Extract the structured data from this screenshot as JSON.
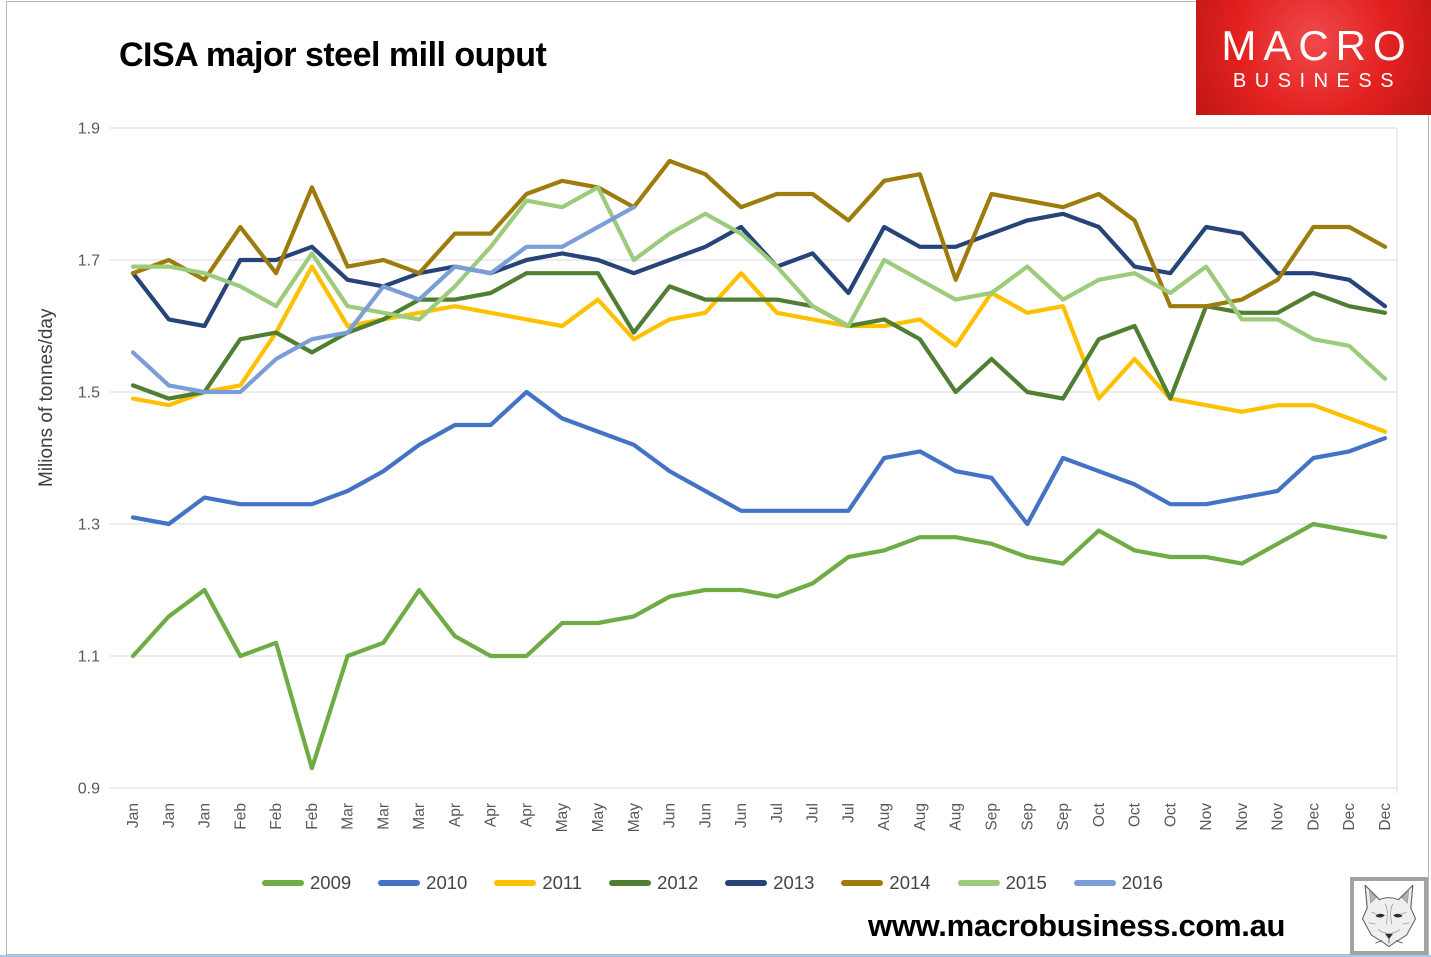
{
  "page": {
    "title": "CISA major steel mill ouput",
    "website": "www.macrobusiness.com.au"
  },
  "logo": {
    "line1": "MACRO",
    "line2": "BUSINESS",
    "bg_color": "#e2211f",
    "text_color": "#ffffff"
  },
  "chart_data": {
    "type": "line",
    "title": "CISA major steel mill ouput",
    "xlabel": "",
    "ylabel": "Milions of tonnes/day",
    "ylim": [
      0.9,
      1.9
    ],
    "yticks": [
      1.9,
      1.7,
      1.5,
      1.3,
      1.1,
      0.9
    ],
    "grid": "horizontal",
    "grid_color": "#d9d9d9",
    "tick_color": "#595959",
    "legend_position": "bottom",
    "x_labels": [
      "Jan",
      "Jan",
      "Jan",
      "Feb",
      "Feb",
      "Feb",
      "Mar",
      "Mar",
      "Mar",
      "Apr",
      "Apr",
      "Apr",
      "May",
      "May",
      "May",
      "Jun",
      "Jun",
      "Jun",
      "Jul",
      "Jul",
      "Jul",
      "Aug",
      "Aug",
      "Aug",
      "Sep",
      "Sep",
      "Sep",
      "Oct",
      "Oct",
      "Oct",
      "Nov",
      "Nov",
      "Nov",
      "Dec",
      "Dec",
      "Dec"
    ],
    "series": [
      {
        "name": "2009",
        "color": "#6FAC46",
        "values": [
          1.1,
          1.16,
          1.2,
          1.1,
          1.12,
          0.93,
          1.1,
          1.12,
          1.2,
          1.13,
          1.1,
          1.1,
          1.15,
          1.15,
          1.16,
          1.19,
          1.2,
          1.2,
          1.19,
          1.21,
          1.25,
          1.26,
          1.28,
          1.28,
          1.27,
          1.25,
          1.24,
          1.29,
          1.26,
          1.25,
          1.25,
          1.24,
          1.27,
          1.3,
          1.29,
          1.28
        ]
      },
      {
        "name": "2010",
        "color": "#4472C4",
        "values": [
          1.31,
          1.3,
          1.34,
          1.33,
          1.33,
          1.33,
          1.35,
          1.38,
          1.42,
          1.45,
          1.45,
          1.5,
          1.46,
          1.44,
          1.42,
          1.38,
          1.35,
          1.32,
          1.32,
          1.32,
          1.32,
          1.4,
          1.41,
          1.38,
          1.37,
          1.3,
          1.4,
          1.38,
          1.36,
          1.33,
          1.33,
          1.34,
          1.35,
          1.4,
          1.41,
          1.43
        ]
      },
      {
        "name": "2011",
        "color": "#FFC000",
        "values": [
          1.49,
          1.48,
          1.5,
          1.51,
          1.59,
          1.69,
          1.6,
          1.61,
          1.62,
          1.63,
          1.62,
          1.61,
          1.6,
          1.64,
          1.58,
          1.61,
          1.62,
          1.68,
          1.62,
          1.61,
          1.6,
          1.6,
          1.61,
          1.57,
          1.65,
          1.62,
          1.63,
          1.49,
          1.55,
          1.49,
          1.48,
          1.47,
          1.48,
          1.48,
          1.46,
          1.44
        ]
      },
      {
        "name": "2012",
        "color": "#507E32",
        "values": [
          1.51,
          1.49,
          1.5,
          1.58,
          1.59,
          1.56,
          1.59,
          1.61,
          1.64,
          1.64,
          1.65,
          1.68,
          1.68,
          1.68,
          1.59,
          1.66,
          1.64,
          1.64,
          1.64,
          1.63,
          1.6,
          1.61,
          1.58,
          1.5,
          1.55,
          1.5,
          1.49,
          1.58,
          1.6,
          1.49,
          1.63,
          1.62,
          1.62,
          1.65,
          1.63,
          1.62
        ]
      },
      {
        "name": "2013",
        "color": "#264478",
        "values": [
          1.68,
          1.61,
          1.6,
          1.7,
          1.7,
          1.72,
          1.67,
          1.66,
          1.68,
          1.69,
          1.68,
          1.7,
          1.71,
          1.7,
          1.68,
          1.7,
          1.72,
          1.75,
          1.69,
          1.71,
          1.65,
          1.75,
          1.72,
          1.72,
          1.74,
          1.76,
          1.77,
          1.75,
          1.69,
          1.68,
          1.75,
          1.74,
          1.68,
          1.68,
          1.67,
          1.63
        ]
      },
      {
        "name": "2014",
        "color": "#9E7B0D",
        "values": [
          1.68,
          1.7,
          1.67,
          1.75,
          1.68,
          1.81,
          1.69,
          1.7,
          1.68,
          1.74,
          1.74,
          1.8,
          1.82,
          1.81,
          1.78,
          1.85,
          1.83,
          1.78,
          1.8,
          1.8,
          1.76,
          1.82,
          1.83,
          1.67,
          1.8,
          1.79,
          1.78,
          1.8,
          1.76,
          1.63,
          1.63,
          1.64,
          1.67,
          1.75,
          1.75,
          1.72
        ]
      },
      {
        "name": "2015",
        "color": "#9CCB7B",
        "values": [
          1.69,
          1.69,
          1.68,
          1.66,
          1.63,
          1.71,
          1.63,
          1.62,
          1.61,
          1.66,
          1.72,
          1.79,
          1.78,
          1.81,
          1.7,
          1.74,
          1.77,
          1.74,
          1.69,
          1.63,
          1.6,
          1.7,
          1.67,
          1.64,
          1.65,
          1.69,
          1.64,
          1.67,
          1.68,
          1.65,
          1.69,
          1.61,
          1.61,
          1.58,
          1.57,
          1.52
        ]
      },
      {
        "name": "2016",
        "color": "#7C9ED8",
        "values": [
          1.56,
          1.51,
          1.5,
          1.5,
          1.55,
          1.58,
          1.59,
          1.66,
          1.64,
          1.69,
          1.68,
          1.72,
          1.72,
          1.75,
          1.78
        ]
      }
    ]
  }
}
